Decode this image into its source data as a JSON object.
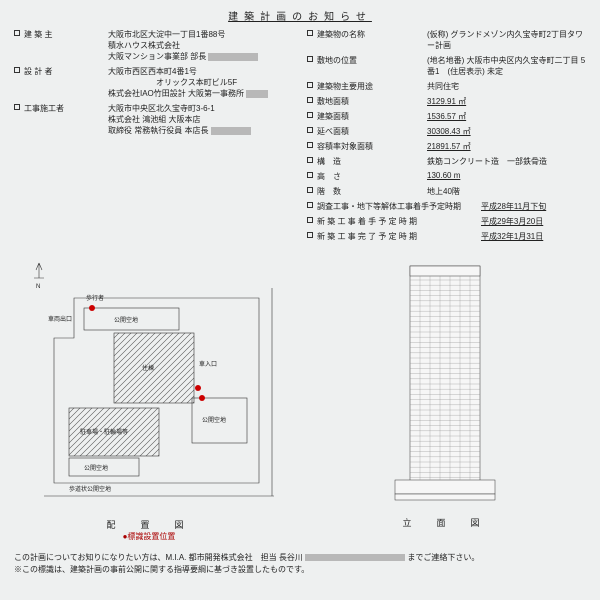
{
  "title": "建築計画のお知らせ",
  "left_rows": [
    {
      "label": "建 築 主",
      "value_lines": [
        "大阪市北区大淀中一丁目1番88号",
        "積水ハウス株式会社",
        "大阪マンション事業部 部長"
      ]
    },
    {
      "label": "設 計 者",
      "value_lines": [
        "大阪市西区西本町4番1号",
        "　　　　　　オリックス本町ビル5F",
        "株式会社IAO竹田設計 大阪第一事務所"
      ]
    },
    {
      "label": "工事施工者",
      "value_lines": [
        "大阪市中央区北久宝寺町3-6-1",
        "株式会社 鴻池組 大阪本店",
        "取締役 常務執行役員 本店長"
      ]
    }
  ],
  "right_rows": [
    {
      "label": "建築物の名称",
      "value": "(仮称) グランドメゾン内久宝寺町2丁目タワー計画"
    },
    {
      "label": "敷地の位置",
      "value": "(地名地番) 大阪市中央区内久宝寺町二丁目 5番1　(住居表示) 未定"
    },
    {
      "label": "建築物主要用途",
      "value": "共同住宅"
    },
    {
      "label": "敷地面積",
      "value": "3129.91 ㎡",
      "u": true
    },
    {
      "label": "建築面積",
      "value": "1536.57 ㎡",
      "u": true
    },
    {
      "label": "延べ面積",
      "value": "30308.43 ㎡",
      "u": true
    },
    {
      "label": "容積率対象面積",
      "value": "21891.57 ㎡",
      "u": true
    },
    {
      "label": "構　造",
      "value": "鉄筋コンクリート造　一部鉄骨造"
    },
    {
      "label": "高　さ",
      "value": "130.60 m",
      "u": true
    },
    {
      "label": "階　数",
      "value": "地上40階"
    },
    {
      "label": "調査工事・地下等解体工事着手予定時期",
      "value": "平成28年11月下旬",
      "u": true,
      "wide": true
    },
    {
      "label": "新 築 工 事 着 手 予 定 時 期",
      "value": "平成29年3月20日",
      "u": true,
      "wide": true
    },
    {
      "label": "新 築 工 事 完 了 予 定 時 期",
      "value": "平成32年1月31日",
      "u": true,
      "wide": true
    }
  ],
  "map_caption": "配　置　図",
  "map_legend": "●標識設置位置",
  "elev_caption": "立　面　図",
  "footer_l1_a": "この計画についてお知りになりたい方は、M.I.A. 都市開発株式会社　担当 長谷川",
  "footer_l1_b": "までご連絡下さい。",
  "footer_l2": "※この標識は、建築計画の事前公開に関する指導要綱に基づき設置したものです。",
  "map_labels": {
    "exit": "車両出口",
    "ped": "歩行者",
    "ent": "車入口",
    "open": "公開空地",
    "bldg": "住棟",
    "park": "駐車場・駐輪場等",
    "road": "歩道状公開空地"
  },
  "colors": {
    "bg": "#eef0f0",
    "line": "#333",
    "red": "#c00",
    "redact": "#b8b8b8"
  }
}
